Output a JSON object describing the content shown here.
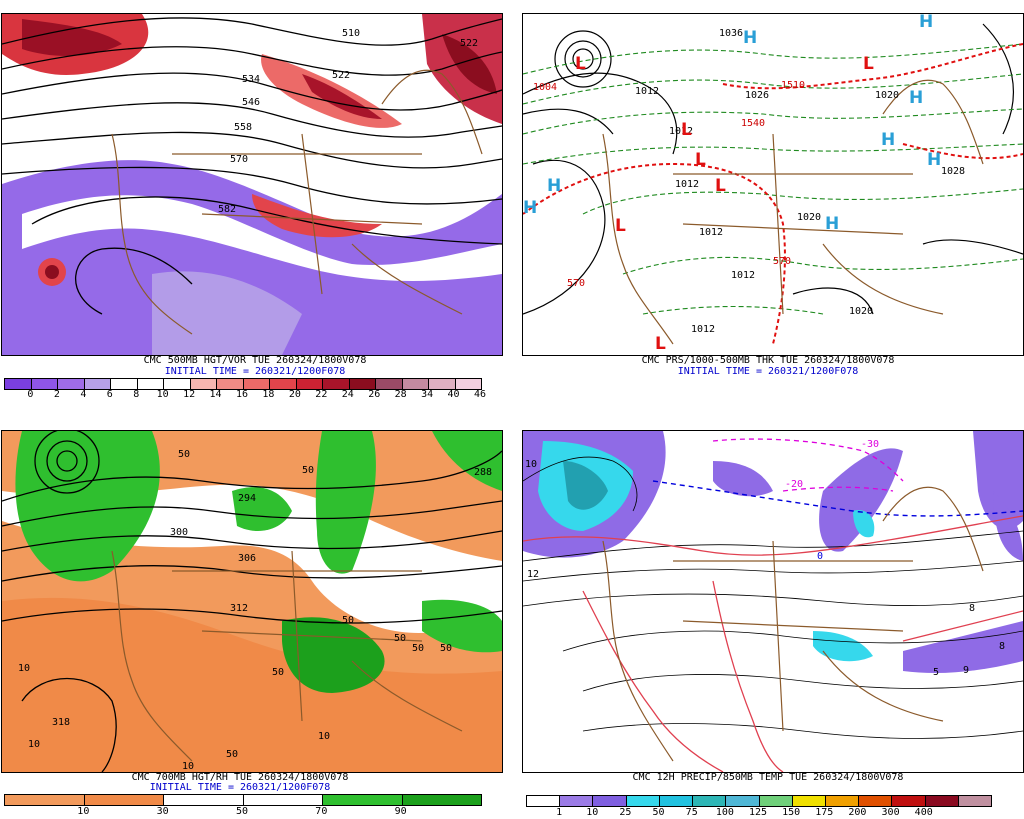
{
  "panels": [
    {
      "id": "p1",
      "caption": "CMC 500MB HGT/VOR TUE 260324/1800V078",
      "initial": "INITIAL TIME = 260321/1200F078",
      "colorbar": {
        "colors": [
          "#7b3fe0",
          "#8f55e8",
          "#9f6ce8",
          "#b7a0e8",
          "#ffffff",
          "#ffffff",
          "#ffffff",
          "#f7b6b0",
          "#f08b85",
          "#ec6a68",
          "#e2444b",
          "#cc2233",
          "#a8142a",
          "#8b0d1f",
          "#9a4a66",
          "#c48aa0",
          "#e0b0c2",
          "#f3cfe0"
        ],
        "labels": [
          "0",
          "2",
          "4",
          "6",
          "8",
          "10",
          "12",
          "14",
          "16",
          "18",
          "20",
          "22",
          "24",
          "26",
          "28",
          "34",
          "40",
          "46"
        ]
      },
      "contours": [
        "510",
        "522",
        "534",
        "546",
        "558",
        "570",
        "582"
      ],
      "contour_labels_extra": [
        "522"
      ]
    },
    {
      "id": "p2",
      "caption": "CMC PRS/1000-500MB THK TUE 260324/1800V078",
      "initial": "INITIAL TIME = 260321/1200F078",
      "labels": [
        "1036",
        "1004",
        "1012",
        "1026",
        "1510",
        "1540",
        "1020",
        "1028",
        "1012",
        "1012",
        "1020",
        "1012",
        "570",
        "570",
        "1012",
        "1020",
        "1012"
      ],
      "highs": [
        "H",
        "H",
        "H",
        "H",
        "H",
        "H",
        "H",
        "H"
      ],
      "lows": [
        "L",
        "L",
        "L",
        "L",
        "L",
        "L",
        "L"
      ]
    },
    {
      "id": "p3",
      "caption": "CMC 700MB HGT/RH TUE 260324/1800V078",
      "initial": "INITIAL TIME = 260321/1200F078",
      "colorbar": {
        "colors": [
          "#f29a5c",
          "#f08a48",
          "#ffffff",
          "#ffffff",
          "#2fbf2f",
          "#1ca01c"
        ],
        "labels": [
          "10",
          "30",
          "50",
          "70",
          "90"
        ]
      },
      "labels": [
        "50",
        "50",
        "294",
        "300",
        "306",
        "312",
        "318",
        "10",
        "10",
        "10",
        "50",
        "50",
        "50",
        "50",
        "50",
        "288",
        "50",
        "10"
      ]
    },
    {
      "id": "p4",
      "caption": "CMC 12H PRECIP/850MB TEMP TUE 260324/1800V078",
      "colorbar": {
        "colors": [
          "#ffffff",
          "#9b7be6",
          "#7f5fe0",
          "#36d8ec",
          "#22c2e0",
          "#2db6b6",
          "#4fb7d6",
          "#6fd07a",
          "#f0e000",
          "#f0a000",
          "#e05000",
          "#c01010",
          "#8a0a20",
          "#c090a0"
        ],
        "labels": [
          "1",
          "10",
          "25",
          "50",
          "75",
          "100",
          "125",
          "150",
          "175",
          "200",
          "300",
          "400"
        ]
      },
      "labels": [
        "10",
        "12",
        "5",
        "8",
        "8",
        "9",
        "0",
        "-30",
        "-20"
      ]
    }
  ]
}
